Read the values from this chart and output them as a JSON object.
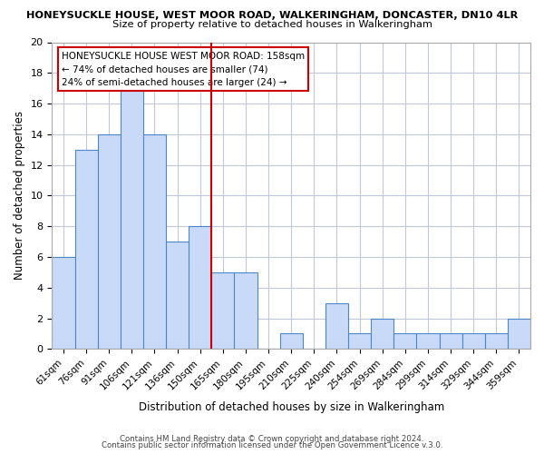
{
  "title": "HONEYSUCKLE HOUSE, WEST MOOR ROAD, WALKERINGHAM, DONCASTER, DN10 4LR",
  "subtitle": "Size of property relative to detached houses in Walkeringham",
  "xlabel": "Distribution of detached houses by size in Walkeringham",
  "ylabel": "Number of detached properties",
  "bar_labels": [
    "61sqm",
    "76sqm",
    "91sqm",
    "106sqm",
    "121sqm",
    "136sqm",
    "150sqm",
    "165sqm",
    "180sqm",
    "195sqm",
    "210sqm",
    "225sqm",
    "240sqm",
    "254sqm",
    "269sqm",
    "284sqm",
    "299sqm",
    "314sqm",
    "329sqm",
    "344sqm",
    "359sqm"
  ],
  "bar_values": [
    6,
    13,
    14,
    17,
    14,
    7,
    8,
    5,
    5,
    0,
    1,
    0,
    3,
    1,
    2,
    1,
    1,
    1,
    1,
    1,
    2
  ],
  "bar_color": "#c9daf8",
  "bar_edge_color": "#4a86c8",
  "vline_color": "#cc0000",
  "ylim": [
    0,
    20
  ],
  "yticks": [
    0,
    2,
    4,
    6,
    8,
    10,
    12,
    14,
    16,
    18,
    20
  ],
  "annotation_title": "HONEYSUCKLE HOUSE WEST MOOR ROAD: 158sqm",
  "annotation_line1": "← 74% of detached houses are smaller (74)",
  "annotation_line2": "24% of semi-detached houses are larger (24) →",
  "annotation_box_edge": "#cc0000",
  "footer1": "Contains HM Land Registry data © Crown copyright and database right 2024.",
  "footer2": "Contains public sector information licensed under the Open Government Licence v.3.0.",
  "bg_color": "#ffffff",
  "grid_color": "#c0c8d8"
}
